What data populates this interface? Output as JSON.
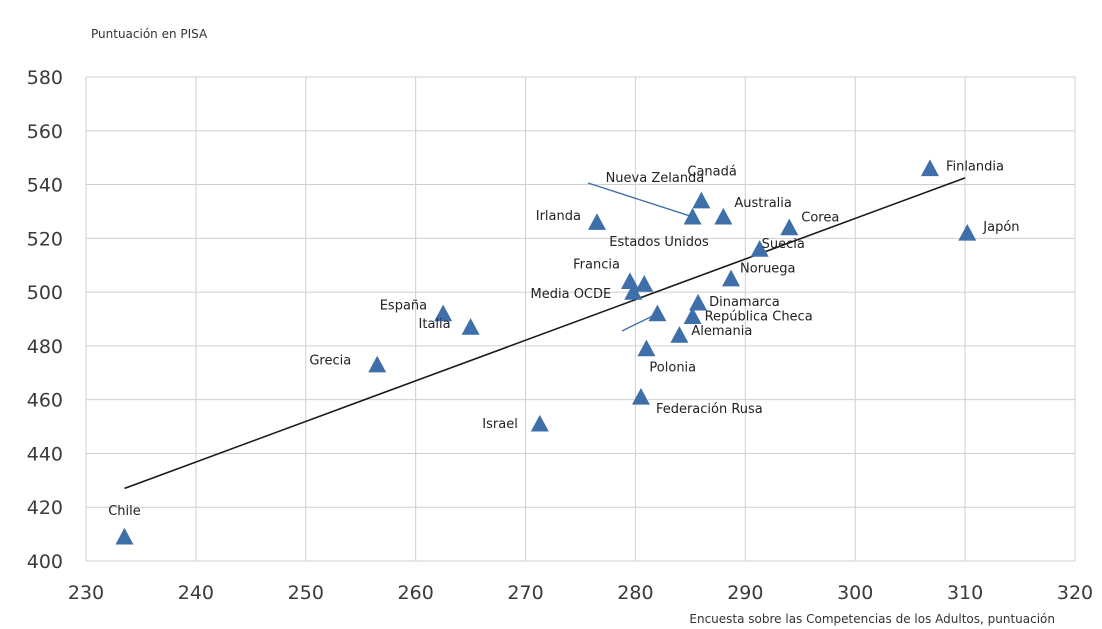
{
  "chart_data": {
    "type": "scatter",
    "title": "",
    "ylabel": "Puntuación en PISA",
    "xlabel": "Encuesta sobre las Competencias de los Adultos, puntuación",
    "xlim": [
      230,
      320
    ],
    "ylim": [
      400,
      580
    ],
    "xticks": [
      230,
      240,
      250,
      260,
      270,
      280,
      290,
      300,
      310,
      320
    ],
    "yticks": [
      400,
      420,
      440,
      460,
      480,
      500,
      520,
      540,
      560,
      580
    ],
    "grid": true,
    "marker_color": "#3e6fa8",
    "trendline": {
      "x": [
        233.5,
        310
      ],
      "y": [
        427,
        542.5
      ],
      "color": "#1a1a1a"
    },
    "points": [
      {
        "label": "Chile",
        "x": 233.5,
        "y": 409
      },
      {
        "label": "Grecia",
        "x": 256.5,
        "y": 473
      },
      {
        "label": "España",
        "x": 262.5,
        "y": 492
      },
      {
        "label": "Italia",
        "x": 265,
        "y": 487
      },
      {
        "label": "Israel",
        "x": 271.3,
        "y": 451
      },
      {
        "label": "Irlanda",
        "x": 276.5,
        "y": 526
      },
      {
        "label": "Francia",
        "x": 279.5,
        "y": 504
      },
      {
        "label": "Media OCDE",
        "x": 279.8,
        "y": 500
      },
      {
        "label": "Estados Unidos",
        "x": 280.8,
        "y": 503
      },
      {
        "label": "Federación Rusa",
        "x": 280.5,
        "y": 461
      },
      {
        "label": "Polonia",
        "x": 281,
        "y": 479
      },
      {
        "label": "",
        "x": 282,
        "y": 492
      },
      {
        "label": "Alemania",
        "x": 284,
        "y": 484
      },
      {
        "label": "República Checa",
        "x": 285.2,
        "y": 491
      },
      {
        "label": "Nueva Zelanda",
        "x": 285.2,
        "y": 528
      },
      {
        "label": "Dinamarca",
        "x": 285.7,
        "y": 496
      },
      {
        "label": "Canadá",
        "x": 286,
        "y": 534
      },
      {
        "label": "Australia",
        "x": 288,
        "y": 528
      },
      {
        "label": "Noruega",
        "x": 288.7,
        "y": 505
      },
      {
        "label": "Suecia",
        "x": 291.3,
        "y": 516
      },
      {
        "label": "Corea",
        "x": 294,
        "y": 524
      },
      {
        "label": "Finlandia",
        "x": 306.8,
        "y": 546
      },
      {
        "label": "Japón",
        "x": 310.2,
        "y": 522
      }
    ]
  }
}
